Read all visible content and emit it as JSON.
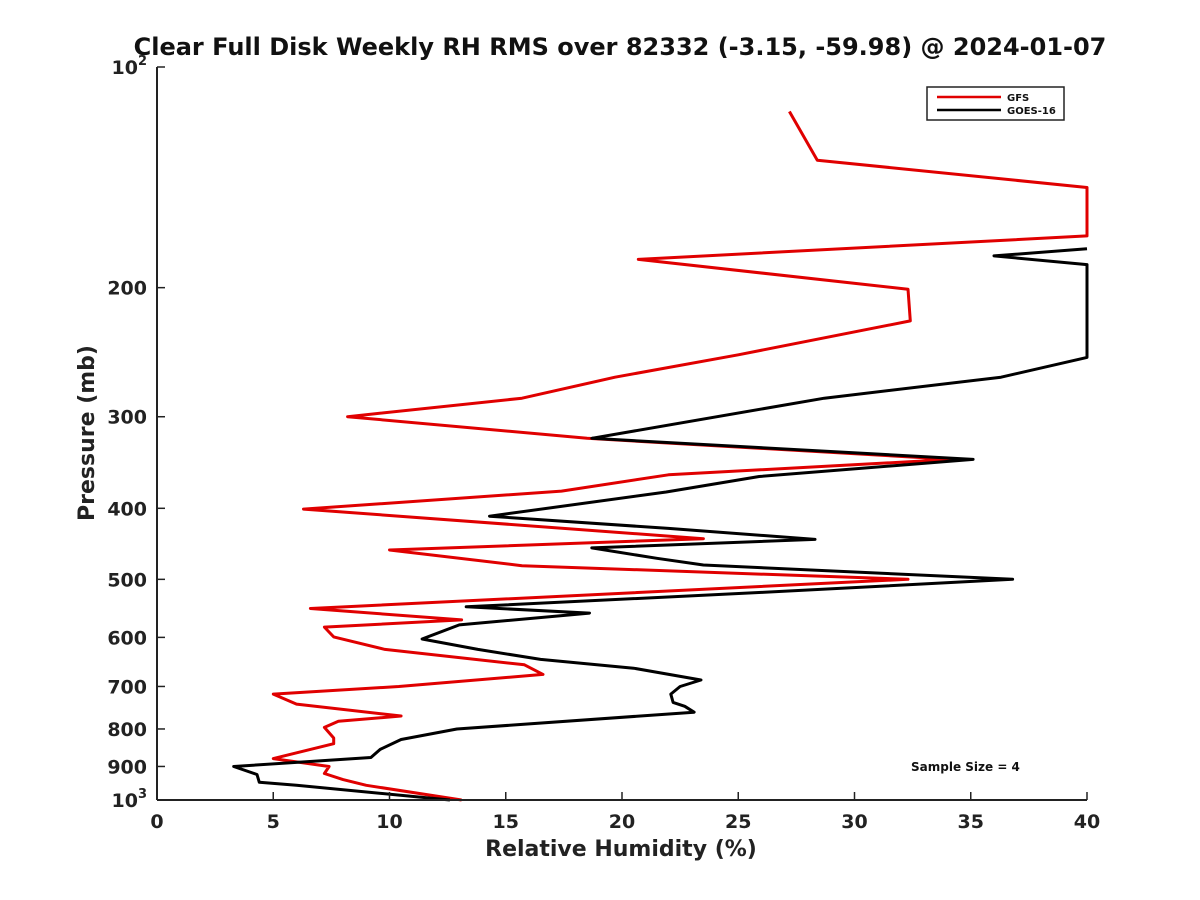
{
  "chart_data": {
    "type": "line",
    "title": "Clear Full Disk Weekly RH RMS over 82332 (-3.15, -59.98) @ 2024-01-07",
    "xlabel": "Relative Humidity (%)",
    "ylabel": "Pressure (mb)",
    "xlim": [
      0,
      40
    ],
    "ylim": [
      100,
      1000
    ],
    "y_scale": "log",
    "y_reversed": true,
    "x_ticks": [
      "0",
      "5",
      "10",
      "15",
      "20",
      "25",
      "30",
      "35",
      "40"
    ],
    "y_ticks": [
      {
        "value": 100,
        "base": "10",
        "exp": "2"
      },
      {
        "value": 200,
        "label": "200"
      },
      {
        "value": 300,
        "label": "300"
      },
      {
        "value": 400,
        "label": "400"
      },
      {
        "value": 500,
        "label": "500"
      },
      {
        "value": 600,
        "label": "600"
      },
      {
        "value": 700,
        "label": "700"
      },
      {
        "value": 800,
        "label": "800"
      },
      {
        "value": 900,
        "label": "900"
      },
      {
        "value": 1000,
        "base": "10",
        "exp": "3"
      }
    ],
    "legend_position": "top-right",
    "annotation": "Sample Size = 4",
    "series": [
      {
        "name": "GFS",
        "color": "#e00000",
        "points": [
          [
            27.2,
            115
          ],
          [
            28.4,
            134
          ],
          [
            40.0,
            146
          ],
          [
            40.0,
            170
          ],
          [
            20.7,
            183
          ],
          [
            32.3,
            201
          ],
          [
            32.4,
            222
          ],
          [
            25.0,
            247
          ],
          [
            19.7,
            265
          ],
          [
            15.7,
            283
          ],
          [
            8.2,
            300
          ],
          [
            18.5,
            321
          ],
          [
            34.2,
            343
          ],
          [
            22.0,
            360
          ],
          [
            17.4,
            379
          ],
          [
            6.3,
            401
          ],
          [
            23.5,
            440
          ],
          [
            10.0,
            456
          ],
          [
            15.7,
            479
          ],
          [
            32.3,
            500
          ],
          [
            6.6,
            548
          ],
          [
            13.1,
            568
          ],
          [
            7.2,
            581
          ],
          [
            7.6,
            599
          ],
          [
            9.8,
            623
          ],
          [
            15.8,
            654
          ],
          [
            16.6,
            674
          ],
          [
            10.4,
            700
          ],
          [
            5.0,
            717
          ],
          [
            6.0,
            740
          ],
          [
            10.5,
            768
          ],
          [
            7.8,
            781
          ],
          [
            7.2,
            796
          ],
          [
            7.6,
            823
          ],
          [
            7.6,
            838
          ],
          [
            5.0,
            878
          ],
          [
            7.4,
            900
          ],
          [
            7.2,
            920
          ],
          [
            8.0,
            938
          ],
          [
            9.0,
            955
          ],
          [
            13.1,
            1000
          ]
        ]
      },
      {
        "name": "GOES-16",
        "color": "#000000",
        "points": [
          [
            40.0,
            177
          ],
          [
            36.0,
            181
          ],
          [
            40.0,
            186
          ],
          [
            40.0,
            249
          ],
          [
            36.3,
            265
          ],
          [
            28.7,
            283
          ],
          [
            18.7,
            321
          ],
          [
            35.1,
            343
          ],
          [
            25.9,
            362
          ],
          [
            21.9,
            380
          ],
          [
            14.3,
            410
          ],
          [
            22.0,
            426
          ],
          [
            28.3,
            441
          ],
          [
            18.7,
            453
          ],
          [
            21.5,
            468
          ],
          [
            23.5,
            478
          ],
          [
            36.8,
            500
          ],
          [
            26.0,
            521
          ],
          [
            13.3,
            545
          ],
          [
            18.6,
            556
          ],
          [
            13.0,
            577
          ],
          [
            11.4,
            603
          ],
          [
            13.8,
            623
          ],
          [
            16.5,
            643
          ],
          [
            20.5,
            661
          ],
          [
            23.4,
            686
          ],
          [
            22.5,
            700
          ],
          [
            22.1,
            717
          ],
          [
            22.2,
            736
          ],
          [
            22.7,
            745
          ],
          [
            23.1,
            759
          ],
          [
            12.9,
            800
          ],
          [
            10.5,
            827
          ],
          [
            9.6,
            853
          ],
          [
            9.2,
            875
          ],
          [
            3.3,
            900
          ],
          [
            4.3,
            923
          ],
          [
            4.4,
            946
          ],
          [
            6.0,
            955
          ],
          [
            12.6,
            1000
          ]
        ]
      }
    ]
  }
}
